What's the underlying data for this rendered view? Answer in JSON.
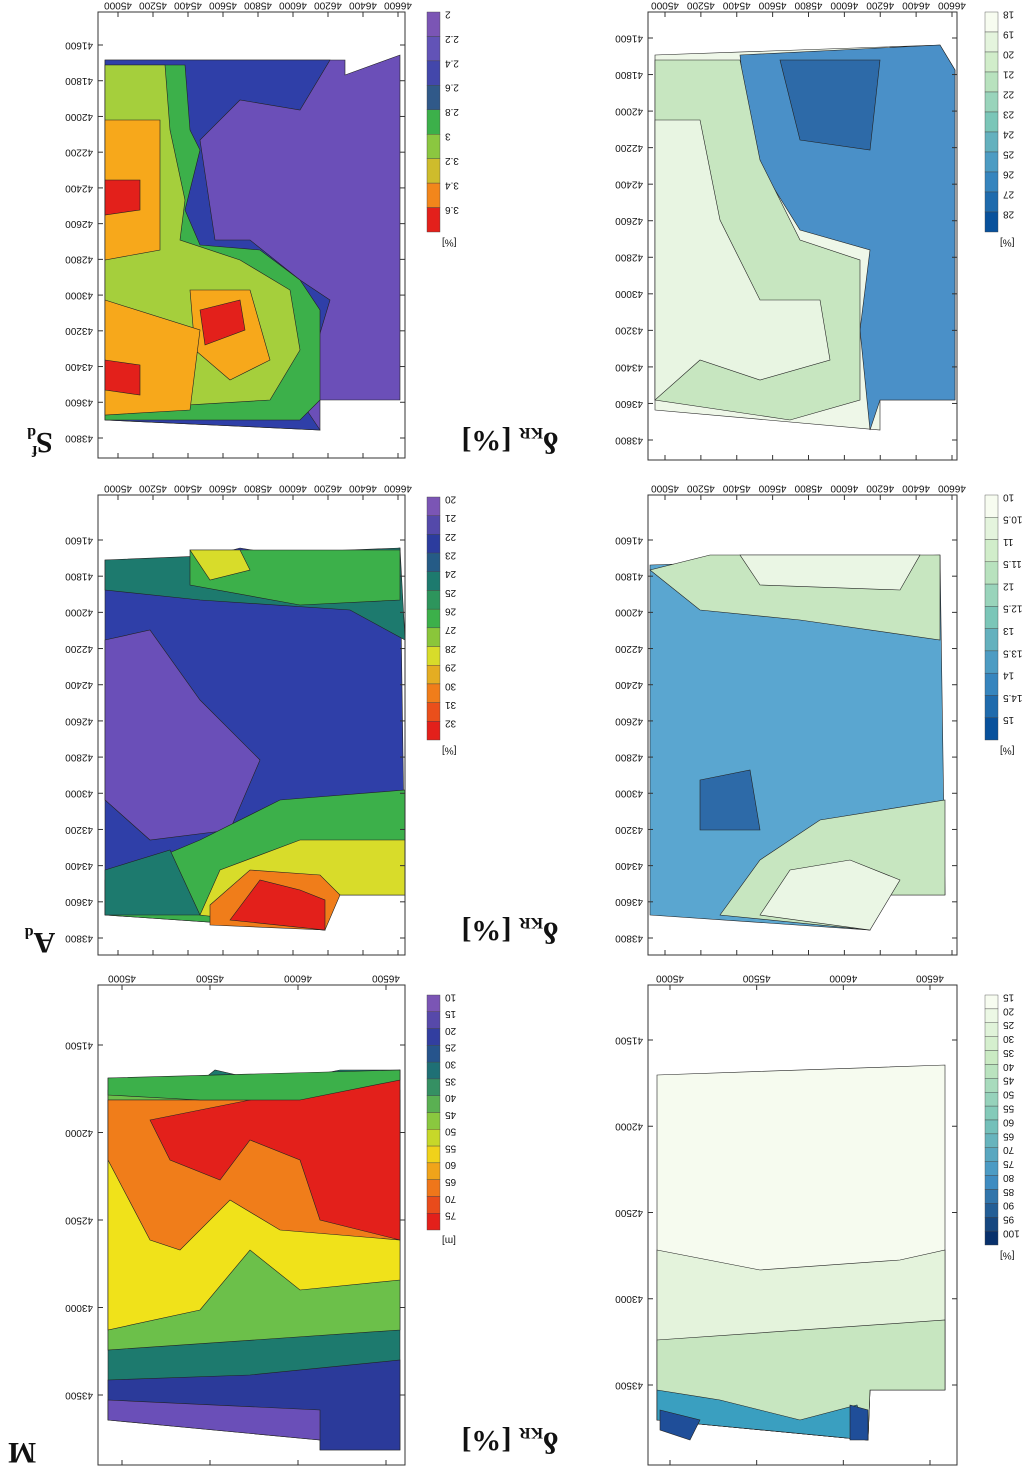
{
  "panels": [
    {
      "label": {
        "main": "S",
        "sub": "d",
        "sup": "f"
      },
      "xticks": [
        "45000",
        "45200",
        "45400",
        "45600",
        "45800",
        "46000",
        "46200",
        "46400",
        "46600"
      ],
      "yticks": [
        "41600",
        "41800",
        "42000",
        "42200",
        "42400",
        "42600",
        "42800",
        "43000",
        "43200",
        "43400",
        "43600",
        "43800"
      ],
      "colorbar": [
        "2",
        "2.2",
        "2.4",
        "2.6",
        "2.8",
        "3",
        "3.2",
        "3.4",
        "3.6"
      ],
      "unit": "[%]"
    },
    {
      "label": {
        "main": "δ",
        "sub": "KR",
        "tail": " [%]"
      },
      "xticks": [
        "45000",
        "45200",
        "45400",
        "45600",
        "45800",
        "46000",
        "46200",
        "46400",
        "46600"
      ],
      "yticks": [
        "41600",
        "41800",
        "42000",
        "42200",
        "42400",
        "42600",
        "42800",
        "43000",
        "43200",
        "43400",
        "43600",
        "43800"
      ],
      "colorbar": [
        "18",
        "19",
        "20",
        "21",
        "22",
        "23",
        "24",
        "25",
        "26",
        "27",
        "28"
      ],
      "unit": "[%]"
    },
    {
      "label": {
        "main": "A",
        "sub": "d"
      },
      "xticks": [
        "45000",
        "45200",
        "45400",
        "45600",
        "45800",
        "46000",
        "46200",
        "46400",
        "46600"
      ],
      "yticks": [
        "41600",
        "41800",
        "42000",
        "42200",
        "42400",
        "42600",
        "42800",
        "43000",
        "43200",
        "43400",
        "43600",
        "43800"
      ],
      "colorbar": [
        "20",
        "21",
        "22",
        "23",
        "24",
        "25",
        "26",
        "27",
        "28",
        "29",
        "30",
        "31",
        "32"
      ],
      "unit": "[%]"
    },
    {
      "label": {
        "main": "δ",
        "sub": "KR",
        "tail": " [%]"
      },
      "xticks": [
        "45000",
        "45200",
        "45400",
        "45600",
        "45800",
        "46000",
        "46200",
        "46400",
        "46600"
      ],
      "yticks": [
        "41600",
        "41800",
        "42000",
        "42200",
        "42400",
        "42600",
        "42800",
        "43000",
        "43200",
        "43400",
        "43600",
        "43800"
      ],
      "colorbar": [
        "10",
        "10.5",
        "11",
        "11.5",
        "12",
        "12.5",
        "13",
        "13.5",
        "14",
        "14.5",
        "15"
      ],
      "unit": "[%]"
    },
    {
      "label": {
        "main": "M"
      },
      "xticks": [
        "45000",
        "45500",
        "46000",
        "46500"
      ],
      "yticks": [
        "41500",
        "42000",
        "42500",
        "43000",
        "43500"
      ],
      "colorbar": [
        "10",
        "15",
        "20",
        "25",
        "30",
        "35",
        "40",
        "45",
        "50",
        "55",
        "60",
        "65",
        "70",
        "75"
      ],
      "unit": "[m]"
    },
    {
      "label": {
        "main": "δ",
        "sub": "KR",
        "tail": " [%]"
      },
      "xticks": [
        "45000",
        "45500",
        "46000",
        "46500"
      ],
      "yticks": [
        "41500",
        "42000",
        "42500",
        "43000",
        "43500"
      ],
      "colorbar": [
        "15",
        "20",
        "25",
        "30",
        "35",
        "40",
        "45",
        "50",
        "55",
        "60",
        "65",
        "70",
        "75",
        "80",
        "85",
        "90",
        "95",
        "100"
      ],
      "unit": "[%]"
    }
  ]
}
